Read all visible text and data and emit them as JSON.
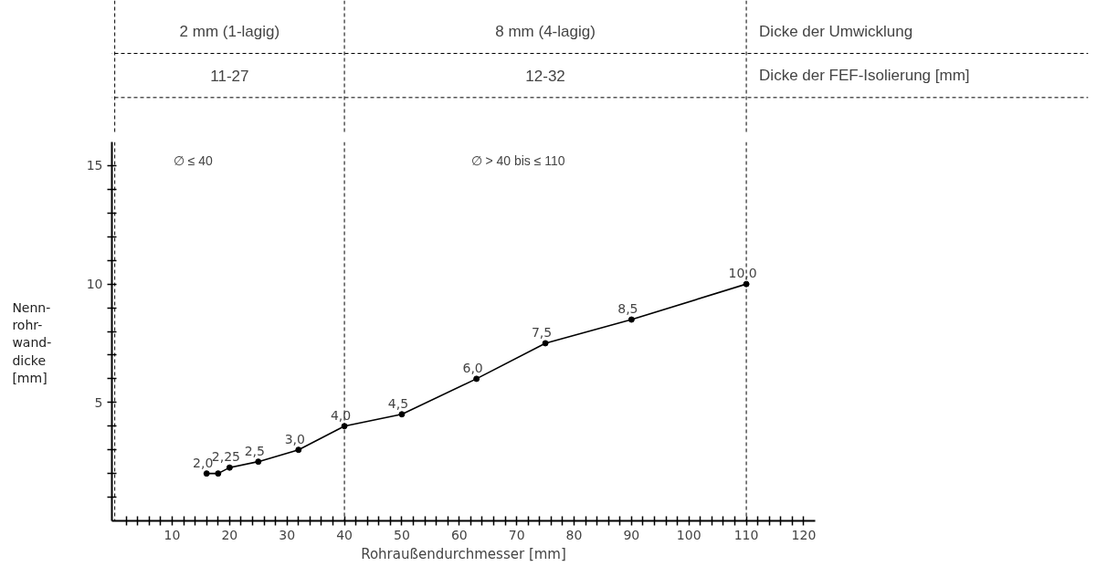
{
  "chart_data": {
    "type": "line",
    "xlabel": "Rohraußendurchmesser [mm]",
    "ylabel": "Nenn-\nrohr-\nwand-\ndicke\n[mm]",
    "x": [
      16,
      18,
      20,
      25,
      32,
      40,
      50,
      63,
      75,
      90,
      110
    ],
    "series": [
      {
        "color": "#000000",
        "values": [
          2.0,
          2.0,
          2.25,
          2.5,
          3.0,
          4.0,
          4.5,
          6.0,
          7.5,
          8.5,
          10.0
        ],
        "value_labels": [
          "2,0",
          null,
          "2,25",
          "2,5",
          "3,0",
          "4,0",
          "4,5",
          "6,0",
          "7,5",
          "8,5",
          "10,0"
        ]
      }
    ],
    "xlim": [
      -0.5,
      122
    ],
    "ylim": [
      0,
      16
    ],
    "xticks": [
      {
        "value": 2,
        "label": null
      },
      {
        "value": 4,
        "label": null
      },
      {
        "value": 6,
        "label": null
      },
      {
        "value": 8,
        "label": null
      },
      10,
      {
        "value": 12,
        "label": null
      },
      {
        "value": 14,
        "label": null
      },
      {
        "value": 16,
        "label": null
      },
      {
        "value": 18,
        "label": null
      },
      20,
      {
        "value": 22,
        "label": null
      },
      {
        "value": 24,
        "label": null
      },
      {
        "value": 26,
        "label": null
      },
      {
        "value": 28,
        "label": null
      },
      30,
      {
        "value": 32,
        "label": null
      },
      {
        "value": 34,
        "label": null
      },
      {
        "value": 36,
        "label": null
      },
      {
        "value": 38,
        "label": null
      },
      40,
      {
        "value": 42,
        "label": null
      },
      {
        "value": 44,
        "label": null
      },
      {
        "value": 46,
        "label": null
      },
      {
        "value": 48,
        "label": null
      },
      50,
      {
        "value": 52,
        "label": null
      },
      {
        "value": 54,
        "label": null
      },
      {
        "value": 56,
        "label": null
      },
      {
        "value": 58,
        "label": null
      },
      60,
      {
        "value": 62,
        "label": null
      },
      {
        "value": 64,
        "label": null
      },
      {
        "value": 66,
        "label": null
      },
      {
        "value": 68,
        "label": null
      },
      70,
      {
        "value": 72,
        "label": null
      },
      {
        "value": 74,
        "label": null
      },
      {
        "value": 76,
        "label": null
      },
      {
        "value": 78,
        "label": null
      },
      80,
      {
        "value": 82,
        "label": null
      },
      {
        "value": 84,
        "label": null
      },
      {
        "value": 86,
        "label": null
      },
      {
        "value": 88,
        "label": null
      },
      90,
      {
        "value": 92,
        "label": null
      },
      {
        "value": 94,
        "label": null
      },
      {
        "value": 96,
        "label": null
      },
      {
        "value": 98,
        "label": null
      },
      100,
      {
        "value": 102,
        "label": null
      },
      {
        "value": 104,
        "label": null
      },
      {
        "value": 106,
        "label": null
      },
      {
        "value": 108,
        "label": null
      },
      110,
      {
        "value": 112,
        "label": null
      },
      {
        "value": 114,
        "label": null
      },
      {
        "value": 116,
        "label": null
      },
      {
        "value": 118,
        "label": null
      },
      120
    ],
    "yticks": [
      {
        "value": 1,
        "label": null
      },
      {
        "value": 2,
        "label": null
      },
      {
        "value": 3,
        "label": null
      },
      {
        "value": 4,
        "label": null
      },
      5,
      {
        "value": 6,
        "label": null
      },
      {
        "value": 7,
        "label": null
      },
      {
        "value": 8,
        "label": null
      },
      {
        "value": 9,
        "label": null
      },
      10,
      {
        "value": 11,
        "label": null
      },
      {
        "value": 12,
        "label": null
      },
      {
        "value": 13,
        "label": null
      },
      {
        "value": 14,
        "label": null
      },
      15
    ],
    "marker": "circle",
    "line_style": "solid",
    "grid": false,
    "ref_lines": [
      {
        "axis": "x",
        "value": 0,
        "line_style": "dashed"
      },
      {
        "axis": "x",
        "value": 40,
        "line_style": "dashed"
      },
      {
        "axis": "x",
        "value": 110,
        "line_style": "dashed"
      }
    ],
    "annotations": [
      "2 mm (1-lagig)",
      "8 mm (4-lagig)",
      "Dicke der Umwicklung",
      "11-27",
      "12-32",
      "Dicke der FEF-Isolierung [mm]",
      "∅ ≤ 40",
      "∅ > 40 bis ≤ 110"
    ]
  }
}
